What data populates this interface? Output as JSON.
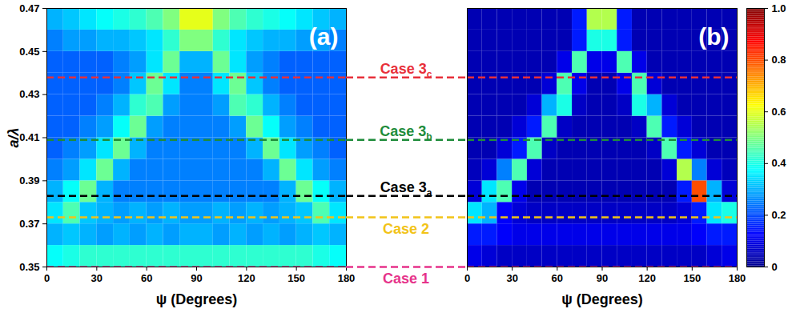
{
  "chart_data": [
    {
      "type": "heatmap",
      "title": "(a)",
      "x_label": "ψ (Degrees)",
      "y_label": "a/λ",
      "xlim": [
        0,
        180
      ],
      "xticks": [
        0,
        30,
        60,
        90,
        120,
        150,
        180
      ],
      "ylim": [
        0.35,
        0.47
      ],
      "yticks": [
        0.35,
        0.37,
        0.39,
        0.41,
        0.43,
        0.45,
        0.47
      ],
      "x_bins": [
        0,
        10,
        20,
        30,
        40,
        50,
        60,
        70,
        80,
        90,
        100,
        110,
        120,
        130,
        140,
        150,
        160,
        170,
        180
      ],
      "y_bins": [
        0.35,
        0.36,
        0.37,
        0.38,
        0.39,
        0.4,
        0.41,
        0.42,
        0.43,
        0.44,
        0.45,
        0.46,
        0.47
      ],
      "z": [
        [
          0.38,
          0.4,
          0.42,
          0.42,
          0.42,
          0.42,
          0.42,
          0.42,
          0.42,
          0.42,
          0.42,
          0.42,
          0.42,
          0.42,
          0.42,
          0.42,
          0.4,
          0.38
        ],
        [
          0.3,
          0.32,
          0.3,
          0.28,
          0.3,
          0.28,
          0.3,
          0.28,
          0.3,
          0.3,
          0.28,
          0.3,
          0.28,
          0.3,
          0.28,
          0.3,
          0.32,
          0.3
        ],
        [
          0.35,
          0.45,
          0.32,
          0.3,
          0.28,
          0.3,
          0.28,
          0.3,
          0.28,
          0.28,
          0.3,
          0.28,
          0.3,
          0.28,
          0.3,
          0.32,
          0.45,
          0.35
        ],
        [
          0.3,
          0.38,
          0.48,
          0.3,
          0.25,
          0.25,
          0.25,
          0.25,
          0.25,
          0.25,
          0.25,
          0.25,
          0.25,
          0.25,
          0.3,
          0.48,
          0.38,
          0.3
        ],
        [
          0.25,
          0.28,
          0.35,
          0.48,
          0.3,
          0.25,
          0.25,
          0.25,
          0.25,
          0.25,
          0.25,
          0.25,
          0.25,
          0.3,
          0.48,
          0.35,
          0.28,
          0.25
        ],
        [
          0.22,
          0.25,
          0.28,
          0.35,
          0.48,
          0.3,
          0.25,
          0.25,
          0.25,
          0.25,
          0.25,
          0.25,
          0.3,
          0.48,
          0.35,
          0.28,
          0.25,
          0.22
        ],
        [
          0.22,
          0.22,
          0.25,
          0.28,
          0.38,
          0.48,
          0.28,
          0.25,
          0.25,
          0.25,
          0.25,
          0.28,
          0.48,
          0.38,
          0.28,
          0.25,
          0.22,
          0.22
        ],
        [
          0.22,
          0.22,
          0.22,
          0.25,
          0.3,
          0.42,
          0.45,
          0.28,
          0.25,
          0.25,
          0.28,
          0.45,
          0.42,
          0.3,
          0.25,
          0.22,
          0.22,
          0.22
        ],
        [
          0.22,
          0.22,
          0.22,
          0.22,
          0.25,
          0.32,
          0.48,
          0.35,
          0.25,
          0.25,
          0.35,
          0.48,
          0.32,
          0.25,
          0.22,
          0.22,
          0.22,
          0.22
        ],
        [
          0.22,
          0.22,
          0.22,
          0.22,
          0.25,
          0.28,
          0.35,
          0.48,
          0.3,
          0.3,
          0.48,
          0.35,
          0.28,
          0.25,
          0.22,
          0.22,
          0.22,
          0.22
        ],
        [
          0.25,
          0.28,
          0.28,
          0.3,
          0.3,
          0.32,
          0.35,
          0.42,
          0.5,
          0.5,
          0.42,
          0.35,
          0.32,
          0.3,
          0.3,
          0.28,
          0.28,
          0.25
        ],
        [
          0.3,
          0.32,
          0.35,
          0.38,
          0.4,
          0.42,
          0.45,
          0.5,
          0.6,
          0.6,
          0.5,
          0.45,
          0.42,
          0.4,
          0.38,
          0.35,
          0.32,
          0.3
        ]
      ]
    },
    {
      "type": "heatmap",
      "title": "(b)",
      "x_label": "ψ (Degrees)",
      "tick_labels": "x",
      "xlim": [
        0,
        180
      ],
      "xticks": [
        0,
        30,
        60,
        90,
        120,
        150,
        180
      ],
      "ylim": [
        0.35,
        0.47
      ],
      "x_bins": [
        0,
        10,
        20,
        30,
        40,
        50,
        60,
        70,
        80,
        90,
        100,
        110,
        120,
        130,
        140,
        150,
        160,
        170,
        180
      ],
      "y_bins": [
        0.35,
        0.36,
        0.37,
        0.38,
        0.39,
        0.4,
        0.41,
        0.42,
        0.43,
        0.44,
        0.45,
        0.46,
        0.47
      ],
      "z": [
        [
          0.1,
          0.08,
          0.06,
          0.06,
          0.06,
          0.06,
          0.06,
          0.06,
          0.06,
          0.06,
          0.06,
          0.06,
          0.06,
          0.06,
          0.06,
          0.06,
          0.08,
          0.1
        ],
        [
          0.15,
          0.15,
          0.12,
          0.1,
          0.1,
          0.1,
          0.1,
          0.1,
          0.1,
          0.1,
          0.1,
          0.1,
          0.1,
          0.1,
          0.1,
          0.12,
          0.15,
          0.15
        ],
        [
          0.35,
          0.3,
          0.12,
          0.08,
          0.06,
          0.06,
          0.06,
          0.06,
          0.06,
          0.06,
          0.06,
          0.06,
          0.06,
          0.06,
          0.08,
          0.15,
          0.35,
          0.4
        ],
        [
          0.08,
          0.35,
          0.45,
          0.1,
          0.04,
          0.04,
          0.04,
          0.04,
          0.04,
          0.04,
          0.04,
          0.04,
          0.04,
          0.04,
          0.15,
          0.8,
          0.3,
          0.08
        ],
        [
          0.05,
          0.08,
          0.25,
          0.45,
          0.08,
          0.04,
          0.04,
          0.04,
          0.04,
          0.04,
          0.04,
          0.04,
          0.04,
          0.08,
          0.55,
          0.25,
          0.08,
          0.05
        ],
        [
          0.04,
          0.04,
          0.08,
          0.15,
          0.45,
          0.06,
          0.04,
          0.04,
          0.04,
          0.04,
          0.04,
          0.04,
          0.06,
          0.45,
          0.15,
          0.08,
          0.04,
          0.04
        ],
        [
          0.04,
          0.04,
          0.04,
          0.08,
          0.15,
          0.45,
          0.06,
          0.04,
          0.04,
          0.04,
          0.04,
          0.06,
          0.45,
          0.15,
          0.08,
          0.04,
          0.04,
          0.04
        ],
        [
          0.04,
          0.04,
          0.04,
          0.04,
          0.08,
          0.3,
          0.4,
          0.06,
          0.04,
          0.04,
          0.06,
          0.4,
          0.3,
          0.08,
          0.04,
          0.04,
          0.04,
          0.04
        ],
        [
          0.04,
          0.04,
          0.04,
          0.04,
          0.04,
          0.08,
          0.45,
          0.1,
          0.04,
          0.04,
          0.1,
          0.45,
          0.08,
          0.04,
          0.04,
          0.04,
          0.04,
          0.04
        ],
        [
          0.04,
          0.04,
          0.04,
          0.04,
          0.04,
          0.04,
          0.1,
          0.45,
          0.1,
          0.1,
          0.45,
          0.1,
          0.04,
          0.04,
          0.04,
          0.04,
          0.04,
          0.04
        ],
        [
          0.04,
          0.04,
          0.04,
          0.04,
          0.04,
          0.04,
          0.04,
          0.15,
          0.4,
          0.4,
          0.15,
          0.04,
          0.04,
          0.04,
          0.04,
          0.04,
          0.04,
          0.04
        ],
        [
          0.04,
          0.04,
          0.04,
          0.04,
          0.04,
          0.04,
          0.04,
          0.15,
          0.55,
          0.55,
          0.15,
          0.04,
          0.04,
          0.04,
          0.04,
          0.04,
          0.04,
          0.04
        ]
      ]
    }
  ],
  "reference_lines": [
    {
      "label": "Case 1",
      "value": 0.35,
      "color": "#e6338a"
    },
    {
      "label": "Case 2",
      "value": 0.373,
      "color": "#f2c318"
    },
    {
      "label": "Case 3",
      "subscript": "a",
      "value": 0.383,
      "color": "#000000"
    },
    {
      "label": "Case 3",
      "subscript": "b",
      "value": 0.409,
      "color": "#1e8c3a"
    },
    {
      "label": "Case 3",
      "subscript": "c",
      "value": 0.438,
      "color": "#e8303a"
    }
  ],
  "colorbar": {
    "range": [
      0,
      1
    ],
    "ticks": [
      0,
      0.2,
      0.4,
      0.6,
      0.8,
      {
        "value": 1,
        "label": "1.0"
      }
    ],
    "colors": [
      "#00008f",
      "#0000ff",
      "#0080ff",
      "#00ffff",
      "#80ff80",
      "#ffff00",
      "#ff8000",
      "#ff0000",
      "#800000"
    ]
  }
}
